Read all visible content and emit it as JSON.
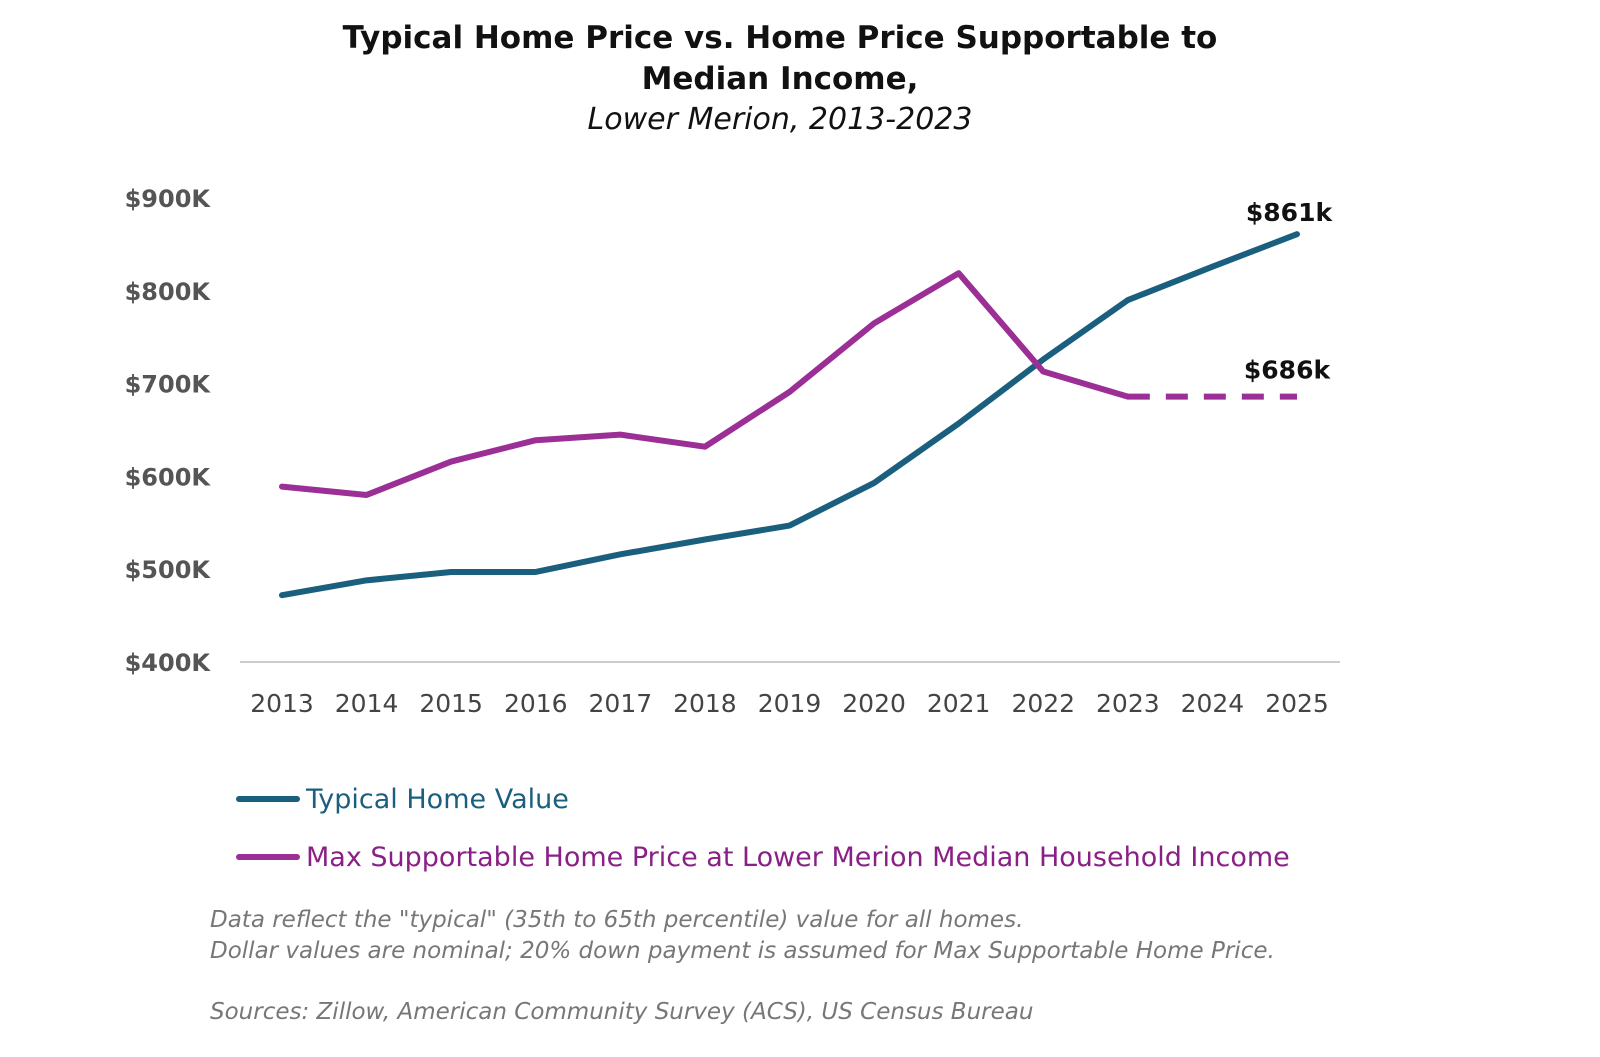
{
  "colors": {
    "typical": "#1b5f7e",
    "supportable": "#9b2f96",
    "axis": "#cccccc"
  },
  "chart_data": {
    "type": "line",
    "title": "Typical Home Price vs. Home Price Supportable to Median Income,",
    "subtitle": "Lower Merion, 2013-2023",
    "xlabel": "",
    "ylabel": "",
    "categories": [
      "2013",
      "2014",
      "2015",
      "2016",
      "2017",
      "2018",
      "2019",
      "2020",
      "2021",
      "2022",
      "2023",
      "2024",
      "2025"
    ],
    "ylim": [
      400,
      900
    ],
    "yticks": [
      {
        "value": 400,
        "label": "$400K"
      },
      {
        "value": 500,
        "label": "$500K"
      },
      {
        "value": 600,
        "label": "$600K"
      },
      {
        "value": 700,
        "label": "$700K"
      },
      {
        "value": 800,
        "label": "$800K"
      },
      {
        "value": 900,
        "label": "$900K"
      }
    ],
    "grid": false,
    "legend_position": "bottom-left",
    "series": [
      {
        "name": "Typical Home Value",
        "color_key": "typical",
        "values": [
          472,
          488,
          497,
          497,
          516,
          532,
          547,
          593,
          657,
          726,
          790,
          826,
          861
        ],
        "end_label": "$861k"
      },
      {
        "name": "Max Supportable Home Price at Lower Merion Median Household Income",
        "color_key": "supportable",
        "values": [
          589,
          580,
          616,
          639,
          645,
          632,
          691,
          765,
          819,
          713,
          686,
          686,
          686
        ],
        "dashed_from_index": 10,
        "end_label": "$686k"
      }
    ]
  },
  "notes": {
    "line1": "Data reflect the \"typical\" (35th to 65th percentile) value for all homes.",
    "line2": "Dollar values are nominal; 20% down payment is assumed for Max Supportable Home Price.",
    "sources": "Sources: Zillow, American Community Survey (ACS), US Census Bureau"
  }
}
